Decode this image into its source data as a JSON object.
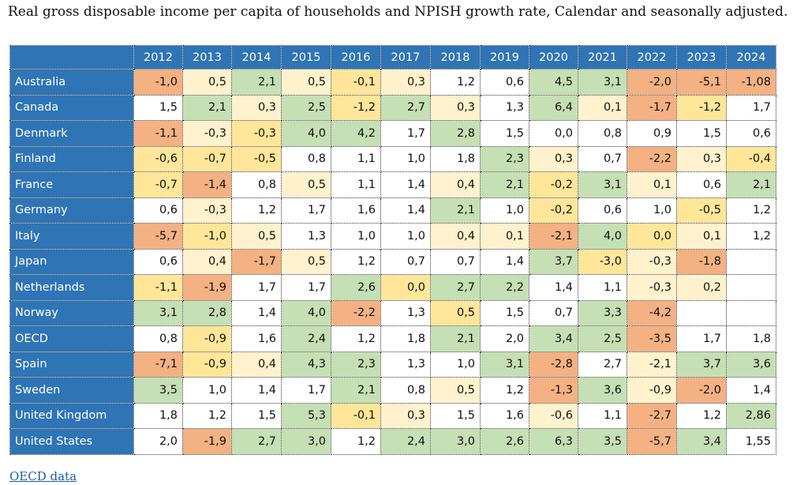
{
  "title": "Real gross disposable income per capita of households and NPISH growth rate, Calendar and seasonally adjusted.",
  "source_link": "OECD data",
  "colors": {
    "header": "#2f74b5",
    "strong_negative": "#f4b183",
    "moderate_negative": "#ffe699",
    "mild_negative": "#fff2cc",
    "neutral": "#ffffff",
    "positive": "#c5e0b4"
  },
  "chart_data": {
    "type": "table",
    "title": "Real gross disposable income per capita of households and NPISH growth rate, Calendar and seasonally adjusted.",
    "columns": [
      "2012",
      "2013",
      "2014",
      "2015",
      "2016",
      "2017",
      "2018",
      "2019",
      "2020",
      "2021",
      "2022",
      "2023",
      "2024"
    ],
    "rows": [
      {
        "country": "Australia",
        "values": [
          "-1,0",
          "0,5",
          "2,1",
          "0,5",
          "-0,1",
          "0,3",
          "1,2",
          "0,6",
          "4,5",
          "3,1",
          "-2,0",
          "-5,1",
          "-1,08"
        ],
        "shades": [
          "sn",
          "mn",
          "po",
          "mn",
          "md",
          "mn",
          "ne",
          "ne",
          "po",
          "po",
          "sn",
          "sn",
          "sn"
        ]
      },
      {
        "country": "Canada",
        "values": [
          "1,5",
          "2,1",
          "0,3",
          "2,5",
          "-1,2",
          "2,7",
          "0,3",
          "1,3",
          "6,4",
          "0,1",
          "-1,7",
          "-1,2",
          "1,7"
        ],
        "shades": [
          "ne",
          "po",
          "mn",
          "po",
          "md",
          "po",
          "mn",
          "ne",
          "po",
          "mn",
          "sn",
          "md",
          "ne"
        ]
      },
      {
        "country": "Denmark",
        "values": [
          "-1,1",
          "-0,3",
          "-0,3",
          "4,0",
          "4,2",
          "1,7",
          "2,8",
          "1,5",
          "0,0",
          "0,8",
          "0,9",
          "1,5",
          "0,6"
        ],
        "shades": [
          "sn",
          "mn",
          "md",
          "po",
          "po",
          "ne",
          "po",
          "ne",
          "ne",
          "ne",
          "ne",
          "ne",
          "ne"
        ]
      },
      {
        "country": "Finland",
        "values": [
          "-0,6",
          "-0,7",
          "-0,5",
          "0,8",
          "1,1",
          "1,0",
          "1,8",
          "2,3",
          "0,3",
          "0,7",
          "-2,2",
          "0,3",
          "-0,4"
        ],
        "shades": [
          "md",
          "md",
          "md",
          "ne",
          "ne",
          "ne",
          "ne",
          "po",
          "mn",
          "ne",
          "sn",
          "mn",
          "md"
        ]
      },
      {
        "country": "France",
        "values": [
          "-0,7",
          "-1,4",
          "0,8",
          "0,5",
          "1,1",
          "1,4",
          "0,4",
          "2,1",
          "-0,2",
          "3,1",
          "0,1",
          "0,6",
          "2,1"
        ],
        "shades": [
          "md",
          "sn",
          "ne",
          "mn",
          "ne",
          "ne",
          "mn",
          "po",
          "md",
          "po",
          "mn",
          "ne",
          "po"
        ]
      },
      {
        "country": "Germany",
        "values": [
          "0,6",
          "-0,3",
          "1,2",
          "1,7",
          "1,6",
          "1,4",
          "2,1",
          "1,0",
          "-0,2",
          "0,6",
          "1,0",
          "-0,5",
          "1,2"
        ],
        "shades": [
          "ne",
          "mn",
          "ne",
          "ne",
          "ne",
          "ne",
          "po",
          "ne",
          "md",
          "ne",
          "ne",
          "md",
          "ne"
        ]
      },
      {
        "country": "Italy",
        "values": [
          "-5,7",
          "-1,0",
          "0,5",
          "1,3",
          "1,0",
          "1,0",
          "0,4",
          "0,1",
          "-2,1",
          "4,0",
          "0,0",
          "0,1",
          "1,2"
        ],
        "shades": [
          "sn",
          "md",
          "mn",
          "ne",
          "ne",
          "ne",
          "mn",
          "mn",
          "sn",
          "po",
          "md",
          "mn",
          "ne"
        ]
      },
      {
        "country": "Japan",
        "values": [
          "0,6",
          "0,4",
          "-1,7",
          "0,5",
          "1,2",
          "0,7",
          "0,7",
          "1,4",
          "3,7",
          "-3,0",
          "-0,3",
          "-1,8",
          ""
        ],
        "shades": [
          "ne",
          "mn",
          "sn",
          "mn",
          "ne",
          "ne",
          "ne",
          "ne",
          "po",
          "md",
          "mn",
          "sn",
          "ne"
        ]
      },
      {
        "country": "Netherlands",
        "values": [
          "-1,1",
          "-1,9",
          "1,7",
          "1,7",
          "2,6",
          "0,0",
          "2,7",
          "2,2",
          "1,4",
          "1,1",
          "-0,3",
          "0,2",
          ""
        ],
        "shades": [
          "md",
          "sn",
          "ne",
          "ne",
          "po",
          "md",
          "po",
          "po",
          "ne",
          "ne",
          "mn",
          "mn",
          "ne"
        ]
      },
      {
        "country": "Norway",
        "values": [
          "3,1",
          "2,8",
          "1,4",
          "4,0",
          "-2,2",
          "1,3",
          "0,5",
          "1,5",
          "0,7",
          "3,3",
          "-4,2",
          "",
          ""
        ],
        "shades": [
          "po",
          "po",
          "ne",
          "po",
          "sn",
          "ne",
          "md",
          "ne",
          "ne",
          "po",
          "sn",
          "ne",
          "ne"
        ]
      },
      {
        "country": "OECD",
        "values": [
          "0,8",
          "-0,9",
          "1,6",
          "2,4",
          "1,2",
          "1,8",
          "2,1",
          "2,0",
          "3,4",
          "2,5",
          "-3,5",
          "1,7",
          "1,8"
        ],
        "shades": [
          "ne",
          "md",
          "ne",
          "po",
          "ne",
          "ne",
          "po",
          "ne",
          "po",
          "po",
          "sn",
          "ne",
          "ne"
        ]
      },
      {
        "country": "Spain",
        "values": [
          "-7,1",
          "-0,9",
          "0,4",
          "4,3",
          "2,3",
          "1,3",
          "1,0",
          "3,1",
          "-2,8",
          "2,7",
          "-2,1",
          "3,7",
          "3,6"
        ],
        "shades": [
          "sn",
          "md",
          "mn",
          "po",
          "po",
          "ne",
          "ne",
          "po",
          "sn",
          "ne",
          "mn",
          "po",
          "po"
        ]
      },
      {
        "country": "Sweden",
        "values": [
          "3,5",
          "1,0",
          "1,4",
          "1,7",
          "2,1",
          "0,8",
          "0,5",
          "1,2",
          "-1,3",
          "3,6",
          "-0,9",
          "-2,0",
          "1,4"
        ],
        "shades": [
          "po",
          "ne",
          "ne",
          "ne",
          "po",
          "ne",
          "mn",
          "ne",
          "sn",
          "po",
          "mn",
          "sn",
          "ne"
        ]
      },
      {
        "country": "United Kingdom",
        "values": [
          "1,8",
          "1,2",
          "1,5",
          "5,3",
          "-0,1",
          "0,3",
          "1,5",
          "1,6",
          "-0,6",
          "1,1",
          "-2,7",
          "1,2",
          "2,86"
        ],
        "shades": [
          "ne",
          "ne",
          "ne",
          "po",
          "md",
          "mn",
          "ne",
          "ne",
          "mn",
          "ne",
          "sn",
          "ne",
          "po"
        ]
      },
      {
        "country": "United States",
        "values": [
          "2,0",
          "-1,9",
          "2,7",
          "3,0",
          "1,2",
          "2,4",
          "3,0",
          "2,6",
          "6,3",
          "3,5",
          "-5,7",
          "3,4",
          "1,55"
        ],
        "shades": [
          "ne",
          "sn",
          "po",
          "po",
          "ne",
          "po",
          "po",
          "po",
          "po",
          "po",
          "sn",
          "po",
          "ne"
        ]
      }
    ]
  }
}
